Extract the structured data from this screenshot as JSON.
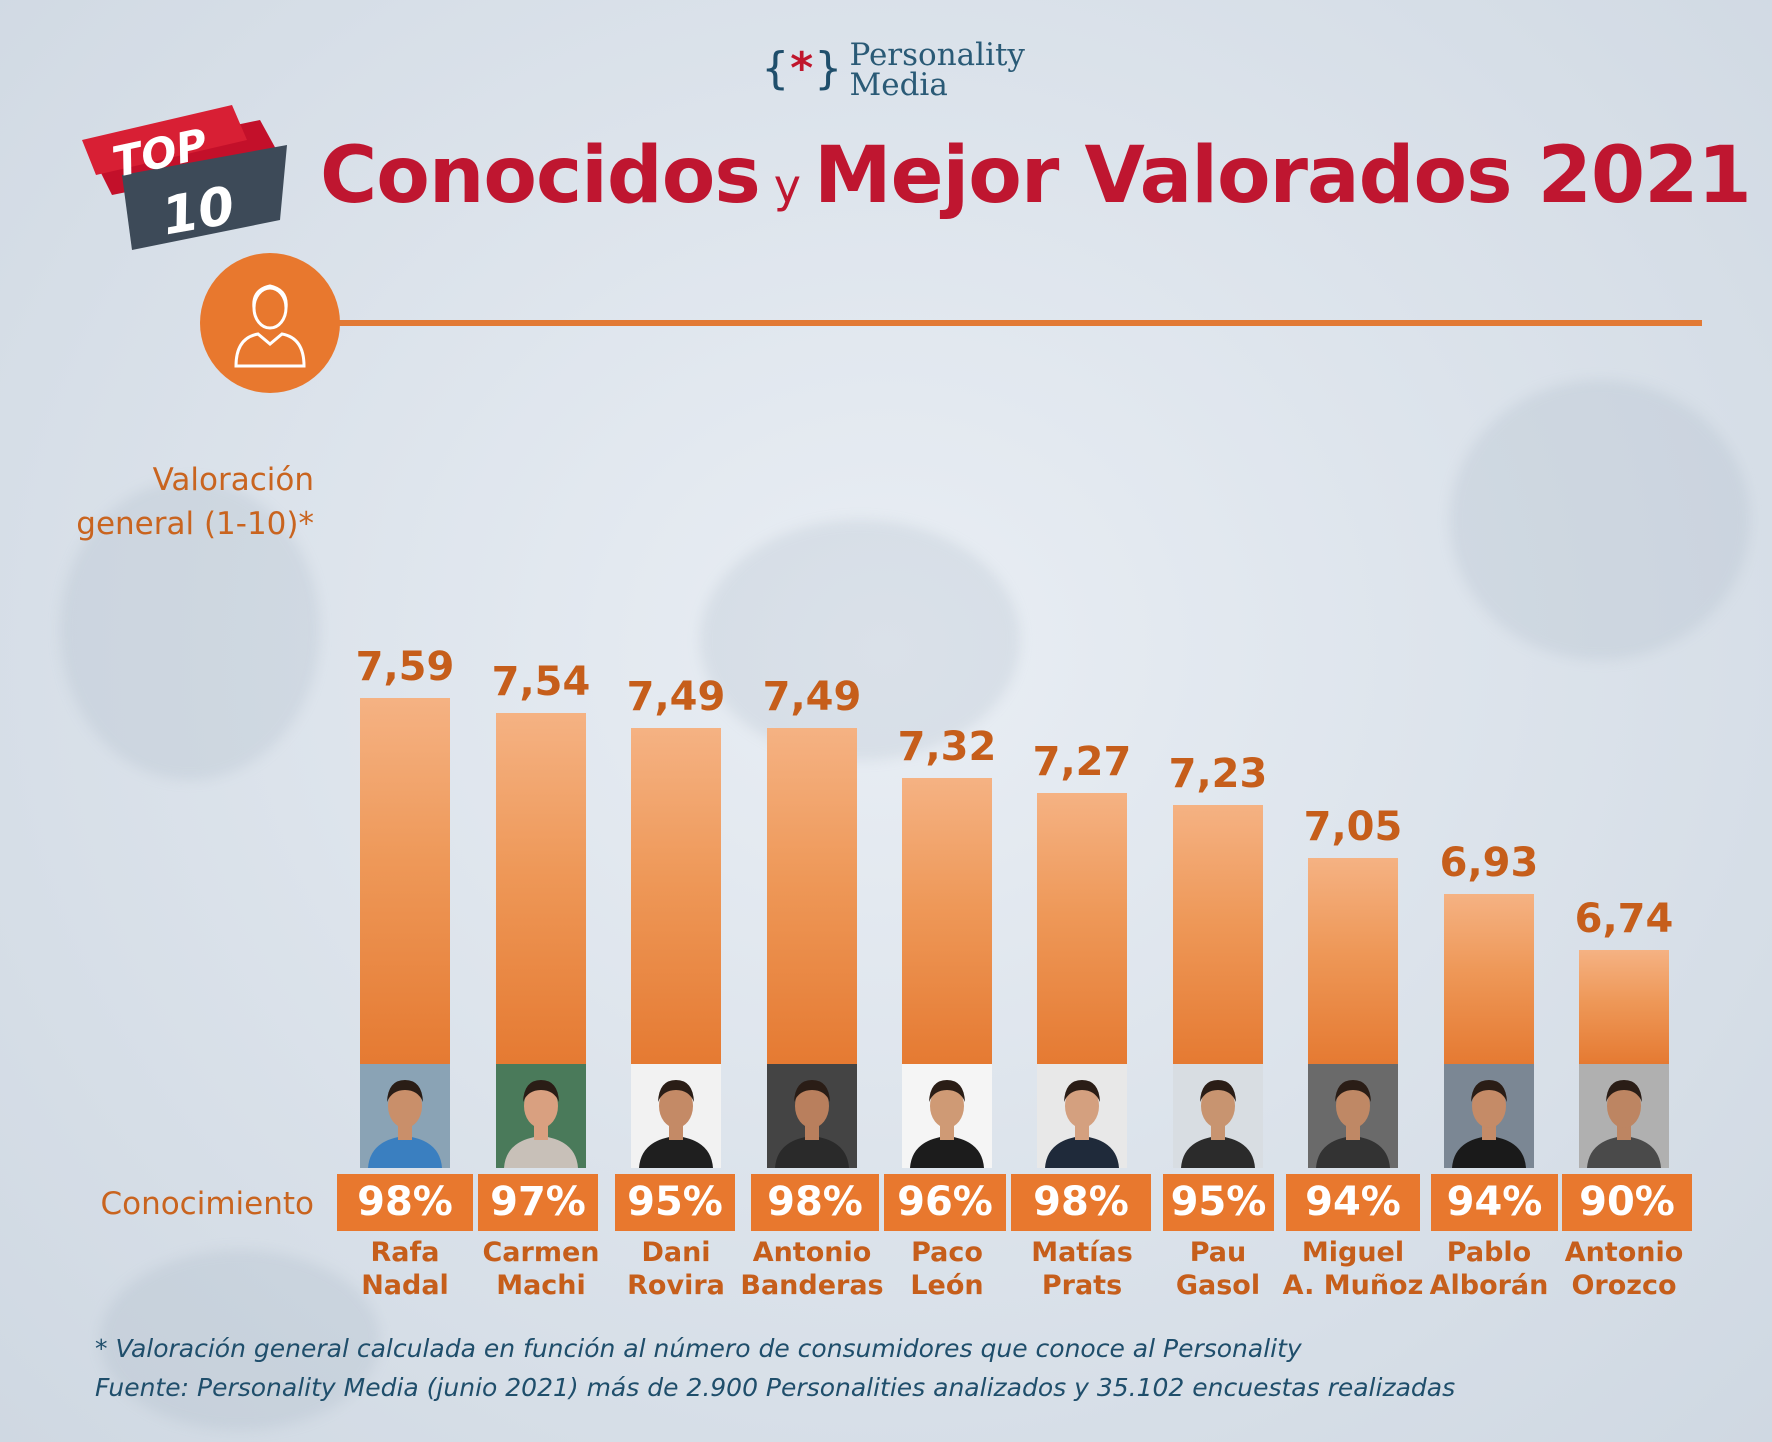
{
  "brand": {
    "line1": "Personality",
    "line2": "Media",
    "mark_left": "{",
    "mark_star": "*",
    "mark_right": "}"
  },
  "badge": {
    "top": "TOP",
    "num": "10"
  },
  "title": {
    "part1": "Conocidos",
    "connector": "y",
    "part2": "Mejor Valorados 2021"
  },
  "axis_label": {
    "line1": "Valoración",
    "line2": "general (1-10)*"
  },
  "conocimiento_label": "Conocimiento",
  "footnote": {
    "line1": "* Valoración general calculada en función al número de consumidores que conoce al Personality",
    "line2": "Fuente: Personality Media (junio 2021) más de 2.900 Personalities analizados y 35.102 encuestas realizadas"
  },
  "colors": {
    "accent": "#e8782e",
    "title_red": "#bf1630",
    "value_text": "#c65e1b",
    "navy": "#1f4e6b"
  },
  "chart_data": {
    "type": "bar",
    "categories": [
      "Rafa Nadal",
      "Carmen Machi",
      "Dani Rovira",
      "Antonio Banderas",
      "Paco León",
      "Matías Prats",
      "Pau Gasol",
      "Miguel A. Muñoz",
      "Pablo Alborán",
      "Antonio Orozco"
    ],
    "name_lines": [
      [
        "Rafa",
        "Nadal"
      ],
      [
        "Carmen",
        "Machi"
      ],
      [
        "Dani",
        "Rovira"
      ],
      [
        "Antonio",
        "Banderas"
      ],
      [
        "Paco",
        "León"
      ],
      [
        "Matías",
        "Prats"
      ],
      [
        "Pau",
        "Gasol"
      ],
      [
        "Miguel",
        "A. Muñoz"
      ],
      [
        "Pablo",
        "Alborán"
      ],
      [
        "Antonio",
        "Orozco"
      ]
    ],
    "values": [
      7.59,
      7.54,
      7.49,
      7.49,
      7.32,
      7.27,
      7.23,
      7.05,
      6.93,
      6.74
    ],
    "value_labels": [
      "7,59",
      "7,54",
      "7,49",
      "7,49",
      "7,32",
      "7,27",
      "7,23",
      "7,05",
      "6,93",
      "6,74"
    ],
    "conocimiento": [
      "98%",
      "97%",
      "95%",
      "98%",
      "96%",
      "98%",
      "95%",
      "94%",
      "94%",
      "90%"
    ],
    "ylabel": "Valoración general (1-10)*",
    "grid": false,
    "legend": "none"
  }
}
